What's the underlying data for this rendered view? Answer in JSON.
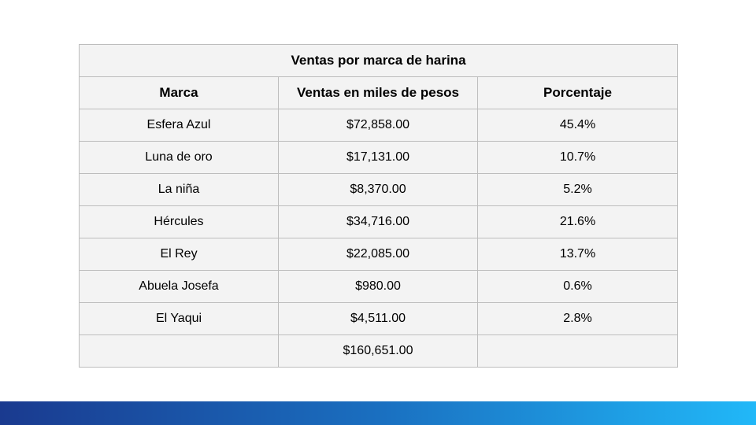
{
  "table": {
    "title": "Ventas por marca de harina",
    "headers": [
      "Marca",
      "Ventas en miles de pesos",
      "Porcentaje"
    ],
    "rows": [
      [
        "Esfera Azul",
        "$72,858.00",
        "45.4%"
      ],
      [
        "Luna de oro",
        "$17,131.00",
        "10.7%"
      ],
      [
        "La niña",
        "$8,370.00",
        "5.2%"
      ],
      [
        "Hércules",
        "$34,716.00",
        "21.6%"
      ],
      [
        "El Rey",
        "$22,085.00",
        "13.7%"
      ],
      [
        "Abuela Josefa",
        "$980.00",
        "0.6%"
      ],
      [
        "El Yaqui",
        "$4,511.00",
        "2.8%"
      ],
      [
        "",
        "$160,651.00",
        ""
      ]
    ]
  },
  "colors": {
    "title_background": "#1fb4f6",
    "cell_background": "#f3f3f3",
    "bar_gradient_start": "#1a3a8f",
    "bar_gradient_end": "#21b8f8"
  }
}
